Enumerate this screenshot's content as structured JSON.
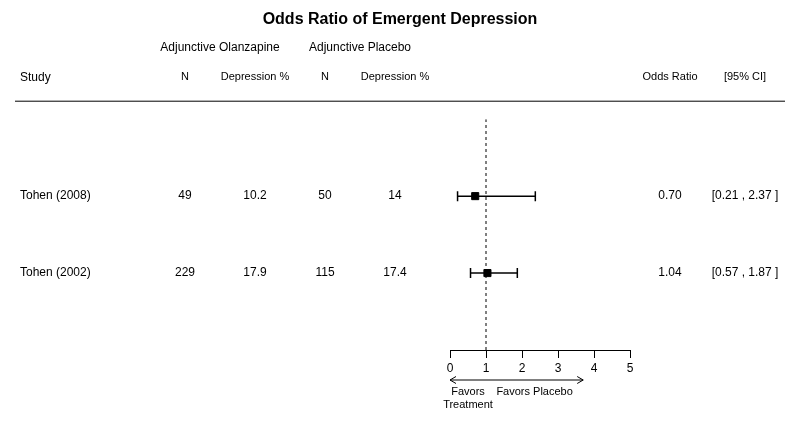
{
  "chart_data": {
    "type": "forest",
    "title": "Odds Ratio of Emergent Depression",
    "categories": [
      "Tohen (2008)",
      "Tohen (2002)"
    ],
    "category_header": "Study",
    "values": [
      0.7,
      1.04
    ],
    "value_labels": [
      "0.70",
      "1.04"
    ],
    "value_header": "Odds Ratio",
    "ci_lower": [
      0.21,
      0.57
    ],
    "ci_upper": [
      2.37,
      1.87
    ],
    "ci_labels": [
      "[0.21 , 2.37 ]",
      "[0.57 , 1.87 ]"
    ],
    "ci_header": "[95% CI]",
    "columns": [
      {
        "group": "Adjunctive Olanzapine",
        "header": "N",
        "values": [
          49,
          229
        ]
      },
      {
        "group": "Adjunctive Olanzapine",
        "header": "Depression %",
        "values": [
          10.2,
          17.9
        ]
      },
      {
        "group": "Adjunctive Placebo",
        "header": "N",
        "values": [
          50,
          115
        ]
      },
      {
        "group": "Adjunctive Placebo",
        "header": "Depression %",
        "values": [
          14,
          17.4
        ]
      }
    ],
    "reference_line": 1.0,
    "annotations": [
      {
        "text": "Favors Treatment",
        "from": 1,
        "to": 0
      },
      {
        "text": "Favors Placebo",
        "from": 1,
        "to": 3.7
      }
    ],
    "xlim": [
      0,
      5
    ],
    "xticks": [
      0,
      1,
      2,
      3,
      4,
      5
    ],
    "color": "#000000",
    "grid": false
  }
}
